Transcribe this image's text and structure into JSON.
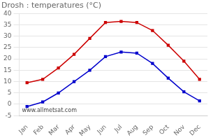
{
  "chart_data": {
    "type": "line",
    "title": "Drosh : temperatures (°C)",
    "categories": [
      "Jan",
      "Feb",
      "Mar",
      "Apr",
      "May",
      "Jun",
      "Jul",
      "Aug",
      "Sep",
      "Oct",
      "Nov",
      "Dec"
    ],
    "series": [
      {
        "color": "#cc0000",
        "marker": "square",
        "values": [
          9.5,
          11,
          16,
          22,
          29,
          36,
          36.5,
          36,
          32.5,
          26,
          19,
          11
        ]
      },
      {
        "color": "#0000cc",
        "marker": "square",
        "values": [
          -1,
          1,
          5,
          10,
          15,
          21,
          23,
          22.5,
          18,
          11.5,
          5.5,
          1.5
        ]
      }
    ],
    "ylim": [
      -5,
      40
    ],
    "yticks": [
      -5,
      0,
      5,
      10,
      15,
      20,
      25,
      30,
      35,
      40
    ],
    "grid": true,
    "annotation": "www.allmetsat.com"
  }
}
